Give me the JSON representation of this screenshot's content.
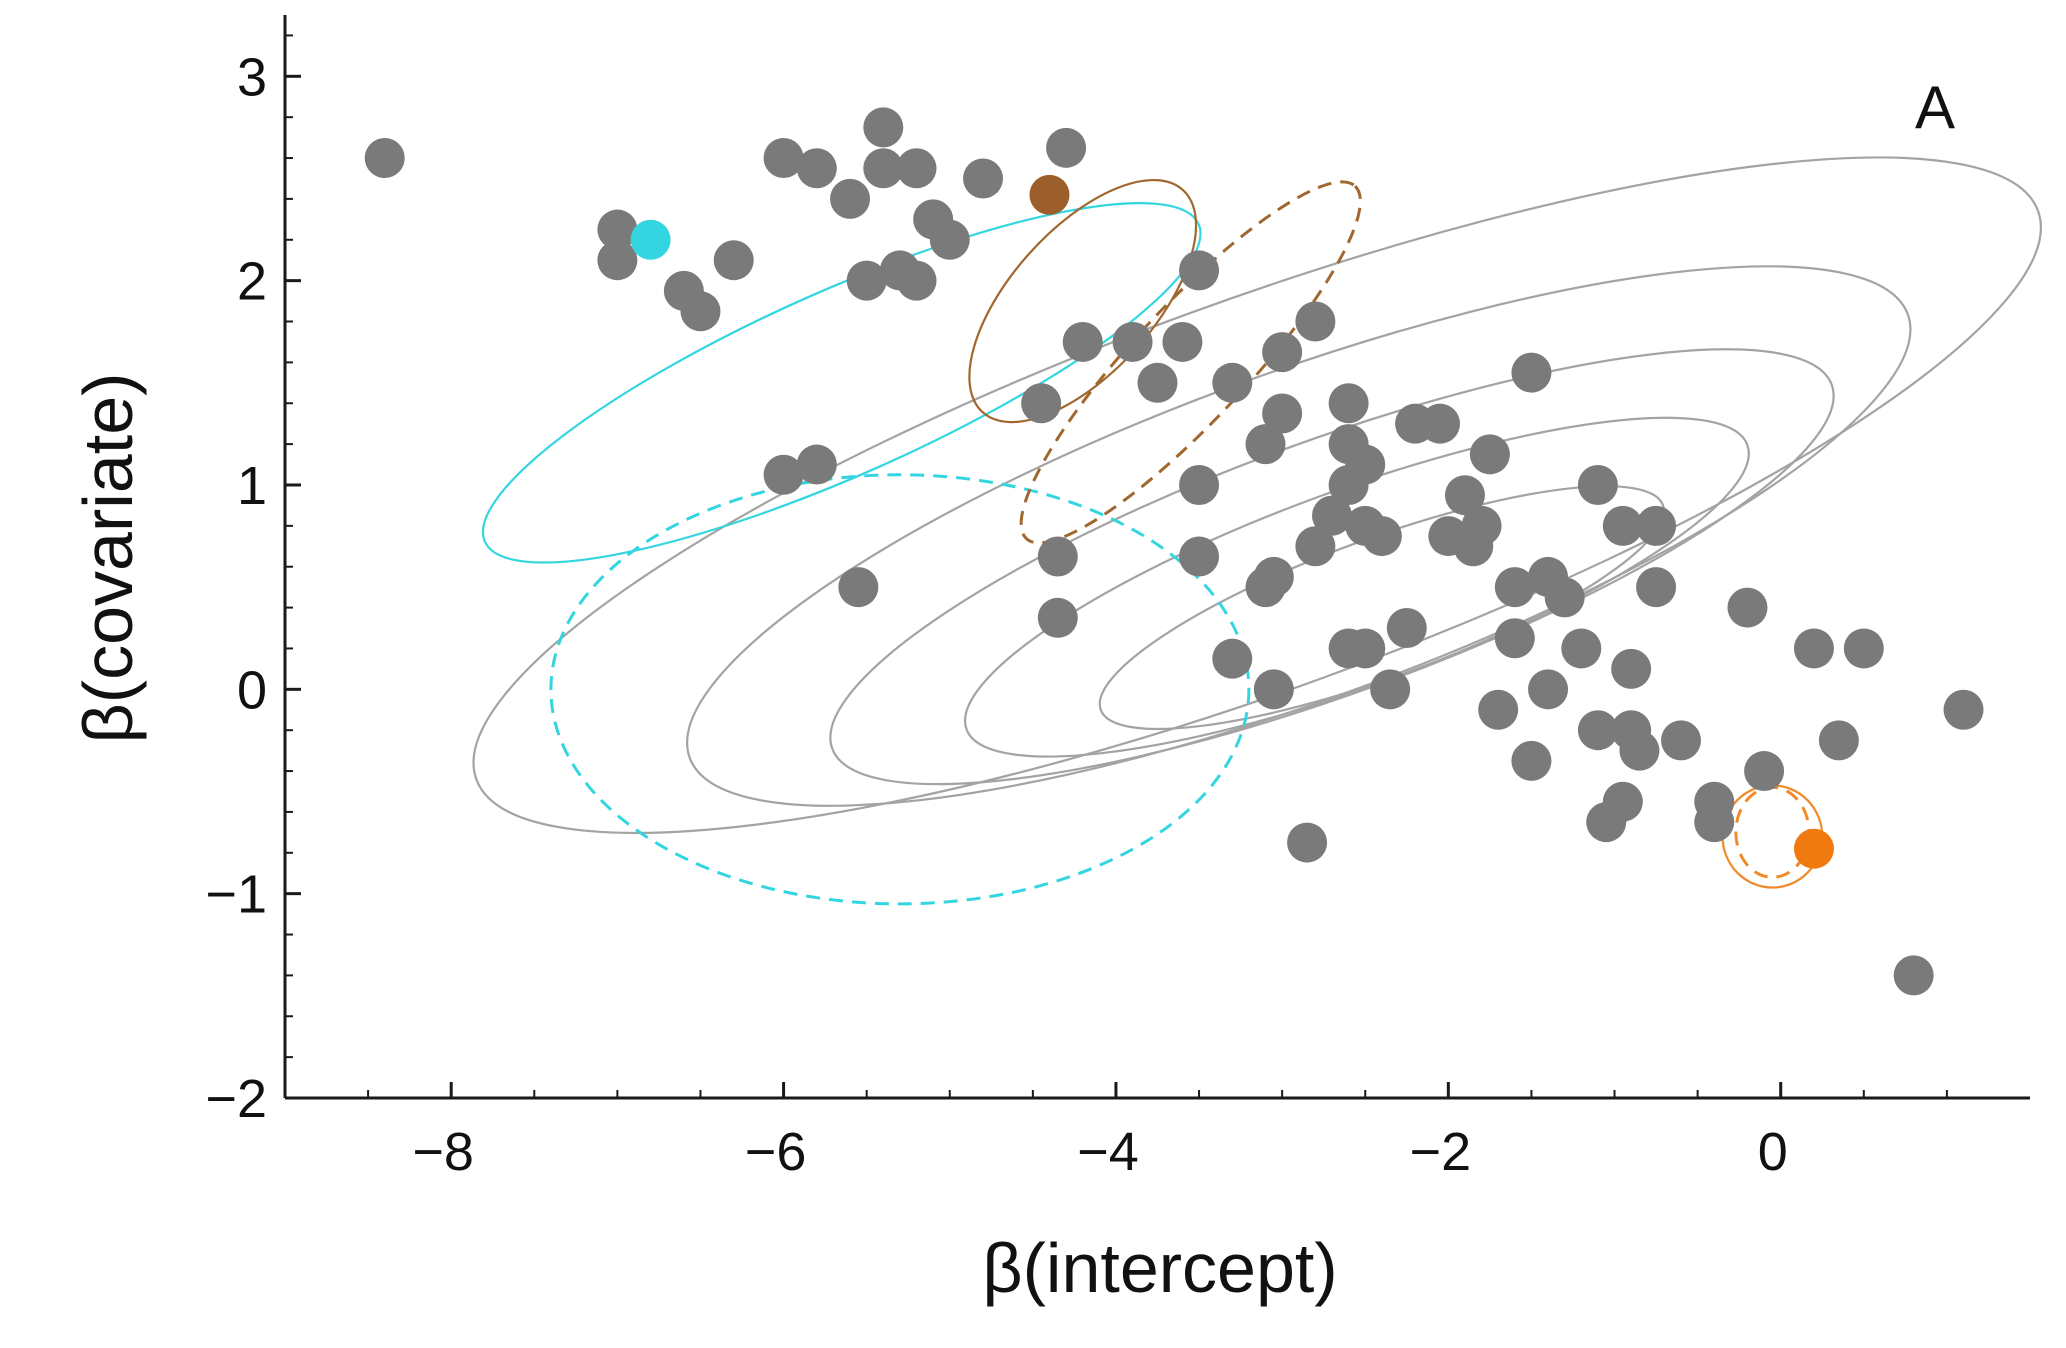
{
  "chart_data": {
    "type": "scatter",
    "panel_label": "A",
    "xlabel": "β(intercept)",
    "ylabel": "β(covariate)",
    "xlim": [
      -9.0,
      1.5
    ],
    "ylim": [
      -2.0,
      3.3
    ],
    "xticks": [
      {
        "value": -8,
        "label": "−8"
      },
      {
        "value": -6,
        "label": "−6"
      },
      {
        "value": -4,
        "label": "−4"
      },
      {
        "value": -2,
        "label": "−2"
      },
      {
        "value": 0,
        "label": "0"
      }
    ],
    "yticks": [
      {
        "value": -2,
        "label": "−2"
      },
      {
        "value": -1,
        "label": "−1"
      },
      {
        "value": 0,
        "label": "0"
      },
      {
        "value": 1,
        "label": "1"
      },
      {
        "value": 2,
        "label": "2"
      },
      {
        "value": 3,
        "label": "3"
      }
    ],
    "colors": {
      "points": "#7a7a7a",
      "contours": "#a3a3a3",
      "cyan": "#33d6e0",
      "brown": "#a0682e",
      "orange": "#f08a2a"
    },
    "series": [
      {
        "color": "#7a7a7a",
        "points": [
          [
            -8.4,
            2.6
          ],
          [
            -7.0,
            2.25
          ],
          [
            -7.0,
            2.1
          ],
          [
            -6.6,
            1.95
          ],
          [
            -6.5,
            1.85
          ],
          [
            -6.3,
            2.1
          ],
          [
            -6.0,
            2.6
          ],
          [
            -5.8,
            2.55
          ],
          [
            -5.6,
            2.4
          ],
          [
            -5.4,
            2.75
          ],
          [
            -5.4,
            2.55
          ],
          [
            -5.2,
            2.55
          ],
          [
            -5.5,
            2.0
          ],
          [
            -5.3,
            2.05
          ],
          [
            -5.2,
            2.0
          ],
          [
            -5.1,
            2.3
          ],
          [
            -5.0,
            2.2
          ],
          [
            -4.8,
            2.5
          ],
          [
            -4.3,
            2.65
          ],
          [
            -3.5,
            2.05
          ],
          [
            -4.2,
            1.7
          ],
          [
            -3.9,
            1.7
          ],
          [
            -3.75,
            1.5
          ],
          [
            -3.6,
            1.7
          ],
          [
            -4.45,
            1.4
          ],
          [
            -2.8,
            1.8
          ],
          [
            -3.0,
            1.65
          ],
          [
            -3.3,
            1.5
          ],
          [
            -3.1,
            1.2
          ],
          [
            -3.0,
            1.35
          ],
          [
            -2.6,
            1.4
          ],
          [
            -2.6,
            1.2
          ],
          [
            -2.5,
            1.1
          ],
          [
            -2.6,
            1.0
          ],
          [
            -2.5,
            0.8
          ],
          [
            -2.7,
            0.85
          ],
          [
            -2.8,
            0.7
          ],
          [
            -2.4,
            0.75
          ],
          [
            -2.2,
            1.3
          ],
          [
            -2.05,
            1.3
          ],
          [
            -1.9,
            0.95
          ],
          [
            -1.8,
            0.8
          ],
          [
            -2.0,
            0.75
          ],
          [
            -1.85,
            0.7
          ],
          [
            -1.75,
            1.15
          ],
          [
            -1.5,
            1.55
          ],
          [
            -1.1,
            1.0
          ],
          [
            -0.95,
            0.8
          ],
          [
            -0.75,
            0.8
          ],
          [
            -0.75,
            0.5
          ],
          [
            -1.6,
            0.5
          ],
          [
            -1.4,
            0.55
          ],
          [
            -1.3,
            0.45
          ],
          [
            -1.6,
            0.25
          ],
          [
            -1.2,
            0.2
          ],
          [
            -0.9,
            0.1
          ],
          [
            -3.5,
            1.0
          ],
          [
            -3.5,
            0.65
          ],
          [
            -3.05,
            0.55
          ],
          [
            -3.1,
            0.5
          ],
          [
            -3.3,
            0.15
          ],
          [
            -3.05,
            0.0
          ],
          [
            -2.6,
            0.2
          ],
          [
            -2.5,
            0.2
          ],
          [
            -2.25,
            0.3
          ],
          [
            -2.35,
            0.0
          ],
          [
            -1.7,
            -0.1
          ],
          [
            -1.4,
            0.0
          ],
          [
            -1.1,
            -0.2
          ],
          [
            -0.9,
            -0.2
          ],
          [
            -0.85,
            -0.3
          ],
          [
            -0.6,
            -0.25
          ],
          [
            -1.5,
            -0.35
          ],
          [
            -1.05,
            -0.65
          ],
          [
            -0.95,
            -0.55
          ],
          [
            -0.4,
            -0.55
          ],
          [
            -0.4,
            -0.65
          ],
          [
            -0.1,
            -0.4
          ],
          [
            0.2,
            0.2
          ],
          [
            0.5,
            0.2
          ],
          [
            -0.2,
            0.4
          ],
          [
            0.35,
            -0.25
          ],
          [
            1.1,
            -0.1
          ],
          [
            0.8,
            -1.4
          ],
          [
            -4.35,
            0.65
          ],
          [
            -4.35,
            0.35
          ],
          [
            -5.55,
            0.5
          ],
          [
            -6.0,
            1.05
          ],
          [
            -5.8,
            1.1
          ],
          [
            -2.85,
            -0.75
          ]
        ]
      },
      {
        "color": "#33d6e0",
        "points": [
          [
            -6.8,
            2.2
          ]
        ]
      },
      {
        "color": "#9c5e2a",
        "points": [
          [
            -4.4,
            2.42
          ]
        ]
      },
      {
        "color": "#f07a10",
        "points": [
          [
            0.2,
            -0.78
          ]
        ]
      }
    ],
    "ellipses": [
      {
        "color": "#a3a3a3",
        "dashed": false,
        "cx": -3.15,
        "cy": 0.95,
        "rx": 5.0,
        "ry": 0.95,
        "angle": -20
      },
      {
        "color": "#a3a3a3",
        "dashed": false,
        "cx": -2.9,
        "cy": 0.75,
        "rx": 3.9,
        "ry": 0.8,
        "angle": -20
      },
      {
        "color": "#a3a3a3",
        "dashed": false,
        "cx": -2.7,
        "cy": 0.6,
        "rx": 3.2,
        "ry": 0.62,
        "angle": -20
      },
      {
        "color": "#a3a3a3",
        "dashed": false,
        "cx": -2.55,
        "cy": 0.5,
        "rx": 2.5,
        "ry": 0.48,
        "angle": -20
      },
      {
        "color": "#a3a3a3",
        "dashed": false,
        "cx": -2.4,
        "cy": 0.4,
        "rx": 1.8,
        "ry": 0.34,
        "angle": -20
      },
      {
        "color": "#33d6e0",
        "dashed": false,
        "cx": -5.65,
        "cy": 1.5,
        "rx": 2.35,
        "ry": 0.45,
        "angle": -24
      },
      {
        "color": "#33d6e0",
        "dashed": true,
        "cx": -5.3,
        "cy": 0.0,
        "rx": 2.1,
        "ry": 1.05,
        "angle": 0
      },
      {
        "color": "#a0682e",
        "dashed": false,
        "cx": -4.2,
        "cy": 1.9,
        "rx": 0.9,
        "ry": 0.35,
        "angle": -48
      },
      {
        "color": "#a0682e",
        "dashed": true,
        "cx": -3.55,
        "cy": 1.6,
        "rx": 1.45,
        "ry": 0.28,
        "angle": -47
      },
      {
        "color": "#f08a2a",
        "dashed": false,
        "cx": -0.05,
        "cy": -0.72,
        "rx": 0.3,
        "ry": 0.25,
        "angle": 0
      },
      {
        "color": "#f08a2a",
        "dashed": true,
        "cx": -0.05,
        "cy": -0.7,
        "rx": 0.22,
        "ry": 0.22,
        "angle": 0
      }
    ]
  }
}
